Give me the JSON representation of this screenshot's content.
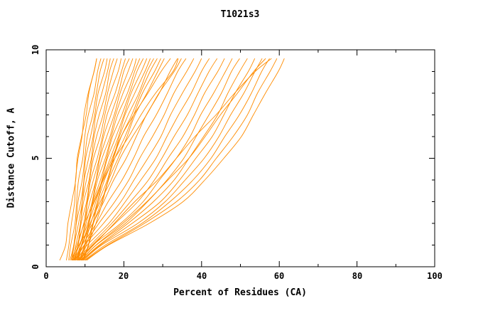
{
  "chart_data": {
    "type": "line",
    "title": "T1021s3",
    "xlabel": "Percent of Residues (CA)",
    "ylabel": "Distance Cutoff, A",
    "xlim": [
      0,
      100
    ],
    "ylim": [
      0,
      10
    ],
    "x_ticks": [
      0,
      20,
      40,
      60,
      80,
      100
    ],
    "y_ticks": [
      0,
      5,
      10
    ],
    "x_minor_ticks": [
      10,
      30,
      50,
      70,
      90
    ],
    "y_minor_ticks": [
      1,
      2,
      3,
      4,
      6,
      7,
      8,
      9
    ],
    "grid": false,
    "legend": "none",
    "line_color": "#ff8c00",
    "axis_color": "#000000",
    "background": "#ffffff",
    "y_values": [
      0.3,
      1,
      2,
      3,
      4,
      5,
      6,
      7,
      8,
      9,
      9.6
    ],
    "series": [
      {
        "x": [
          3.5,
          4.8,
          5.8,
          6.6,
          7.4,
          8.2,
          9.1,
          10.1,
          11.2,
          12.3,
          13.0
        ]
      },
      {
        "x": [
          5.2,
          6.0,
          6.6,
          7.1,
          7.7,
          8.3,
          9.0,
          9.9,
          10.9,
          12.1,
          13.0
        ]
      },
      {
        "x": [
          5.8,
          6.5,
          7.2,
          7.9,
          8.5,
          9.2,
          10.0,
          11.0,
          12.1,
          13.3,
          14.1
        ]
      },
      {
        "x": [
          6.1,
          6.9,
          7.7,
          8.4,
          9.1,
          9.9,
          10.8,
          11.8,
          12.9,
          14.1,
          14.9
        ]
      },
      {
        "x": [
          6.4,
          7.1,
          8.0,
          8.8,
          9.6,
          10.4,
          11.3,
          12.4,
          13.6,
          14.9,
          15.7
        ]
      },
      {
        "x": [
          6.7,
          7.4,
          8.3,
          9.1,
          10.0,
          10.9,
          11.9,
          13.0,
          14.3,
          15.6,
          16.5
        ]
      },
      {
        "x": [
          6.9,
          7.7,
          8.6,
          9.5,
          10.4,
          11.4,
          12.5,
          13.7,
          15.1,
          16.5,
          17.4
        ]
      },
      {
        "x": [
          7.1,
          8.0,
          8.9,
          9.8,
          10.8,
          11.9,
          13.1,
          14.4,
          15.9,
          17.4,
          18.3
        ]
      },
      {
        "x": [
          7.3,
          8.2,
          9.2,
          10.2,
          11.2,
          12.4,
          13.7,
          15.1,
          16.7,
          18.3,
          19.3
        ]
      },
      {
        "x": [
          7.5,
          8.4,
          9.5,
          10.5,
          11.7,
          13.0,
          14.4,
          15.9,
          17.6,
          19.3,
          20.4
        ]
      },
      {
        "x": [
          7.7,
          8.7,
          9.8,
          10.9,
          12.1,
          13.5,
          15.0,
          16.6,
          18.4,
          20.2,
          21.4
        ]
      },
      {
        "x": [
          7.9,
          8.9,
          10.1,
          11.3,
          12.6,
          14.0,
          15.6,
          17.3,
          19.2,
          21.1,
          22.3
        ]
      },
      {
        "x": [
          8.1,
          9.2,
          10.4,
          11.6,
          13.0,
          14.5,
          16.2,
          18.0,
          19.9,
          22.0,
          23.2
        ]
      },
      {
        "x": [
          8.3,
          9.4,
          10.7,
          12.0,
          13.4,
          15.0,
          16.8,
          18.6,
          20.7,
          22.8,
          24.1
        ]
      },
      {
        "x": [
          8.5,
          9.7,
          11.0,
          12.3,
          13.8,
          15.5,
          17.3,
          19.3,
          21.4,
          23.6,
          25.0
        ]
      },
      {
        "x": [
          8.7,
          9.9,
          11.2,
          12.7,
          14.2,
          16.0,
          17.9,
          19.9,
          22.1,
          24.4,
          25.9
        ]
      },
      {
        "x": [
          8.9,
          10.1,
          11.5,
          13.0,
          14.7,
          16.5,
          18.4,
          20.5,
          22.8,
          25.2,
          26.8
        ]
      },
      {
        "x": [
          9.1,
          10.4,
          11.8,
          13.4,
          15.1,
          17.0,
          19.0,
          21.2,
          23.6,
          26.1,
          27.7
        ]
      },
      {
        "x": [
          9.3,
          10.6,
          12.1,
          13.7,
          15.5,
          17.4,
          19.5,
          21.8,
          24.3,
          26.9,
          28.6
        ]
      },
      {
        "x": [
          9.5,
          10.9,
          12.4,
          14.1,
          15.9,
          17.9,
          20.1,
          22.5,
          25.0,
          27.7,
          29.5
        ]
      },
      {
        "x": [
          9.7,
          11.1,
          12.7,
          14.4,
          16.3,
          18.4,
          20.7,
          23.1,
          25.8,
          28.6,
          30.4
        ]
      },
      {
        "x": [
          7.0,
          8.5,
          10.5,
          12.5,
          14.5,
          16.8,
          19.5,
          22.5,
          26.0,
          29.8,
          32.0
        ]
      },
      {
        "x": [
          7.4,
          9.0,
          11.5,
          14.0,
          16.5,
          19.2,
          22.3,
          25.6,
          29.2,
          33.0,
          34.8
        ]
      },
      {
        "x": [
          6.6,
          8.0,
          10.0,
          12.2,
          14.8,
          17.8,
          21.0,
          24.5,
          28.3,
          32.4,
          34.0
        ]
      },
      {
        "x": [
          6.8,
          8.6,
          11.8,
          14.8,
          17.6,
          20.4,
          23.2,
          26.0,
          28.9,
          31.9,
          33.8
        ]
      },
      {
        "x": [
          7.1,
          9.1,
          12.8,
          16.2,
          19.4,
          22.4,
          25.3,
          28.2,
          31.1,
          34.1,
          36.0
        ]
      },
      {
        "x": [
          7.3,
          9.6,
          13.8,
          17.6,
          21.1,
          24.3,
          27.3,
          30.2,
          33.1,
          36.1,
          38.0
        ]
      },
      {
        "x": [
          7.6,
          10.1,
          14.8,
          19.0,
          22.8,
          26.2,
          29.3,
          32.2,
          35.1,
          38.1,
          40.0
        ]
      },
      {
        "x": [
          7.9,
          10.7,
          15.9,
          20.5,
          24.5,
          28.0,
          31.2,
          34.2,
          37.1,
          40.1,
          42.0
        ]
      },
      {
        "x": [
          8.1,
          11.2,
          16.9,
          21.9,
          26.1,
          29.8,
          33.1,
          36.1,
          39.1,
          42.1,
          44.0
        ]
      },
      {
        "x": [
          8.3,
          11.8,
          18.0,
          23.4,
          27.8,
          31.6,
          35.0,
          38.1,
          41.0,
          44.0,
          45.9
        ]
      },
      {
        "x": [
          8.6,
          12.3,
          19.1,
          24.8,
          29.4,
          33.4,
          36.9,
          40.0,
          43.0,
          46.0,
          47.9
        ]
      },
      {
        "x": [
          8.9,
          12.9,
          20.2,
          26.3,
          31.1,
          35.2,
          38.8,
          41.9,
          44.9,
          47.9,
          49.8
        ]
      },
      {
        "x": [
          9.1,
          13.4,
          21.2,
          27.7,
          32.7,
          36.9,
          40.6,
          43.9,
          46.9,
          49.9,
          51.8
        ]
      },
      {
        "x": [
          9.3,
          14.0,
          22.3,
          29.2,
          34.4,
          38.7,
          42.5,
          45.8,
          48.8,
          51.8,
          53.7
        ]
      },
      {
        "x": [
          9.6,
          14.5,
          23.4,
          30.6,
          36.0,
          40.5,
          44.4,
          47.7,
          50.7,
          53.7,
          55.6
        ]
      },
      {
        "x": [
          9.9,
          15.1,
          24.5,
          32.1,
          37.7,
          42.3,
          46.2,
          49.6,
          52.7,
          55.7,
          57.5
        ]
      },
      {
        "x": [
          10.1,
          15.6,
          25.5,
          33.5,
          39.3,
          44.0,
          48.1,
          51.6,
          54.6,
          57.6,
          59.4
        ]
      },
      {
        "x": [
          10.4,
          16.2,
          26.6,
          35.0,
          41.0,
          45.8,
          50.0,
          53.5,
          56.5,
          59.5,
          61.3
        ]
      },
      {
        "x": [
          9.0,
          13.0,
          19.5,
          26.0,
          31.5,
          36.5,
          41.0,
          45.0,
          49.0,
          53.5,
          56.5
        ]
      },
      {
        "x": [
          8.4,
          12.0,
          17.5,
          23.0,
          28.5,
          33.5,
          38.5,
          43.5,
          48.5,
          54.0,
          58.0
        ]
      }
    ]
  }
}
